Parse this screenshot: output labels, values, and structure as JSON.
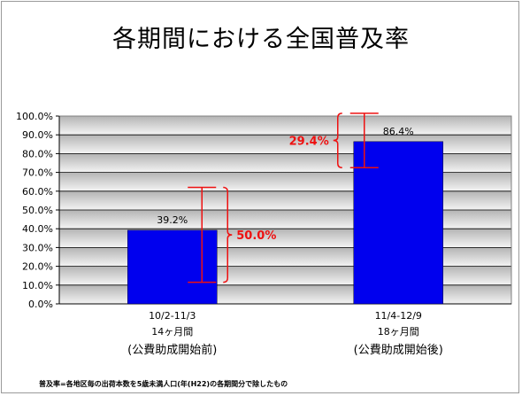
{
  "chart_data": {
    "type": "bar",
    "title": "各期間における全国普及率",
    "categories": [
      {
        "line1": "10/2-11/3",
        "line2": "14ヶ月間",
        "line3": "(公費助成開始前)"
      },
      {
        "line1": "11/4-12/9",
        "line2": "18ヶ月間",
        "line3": "(公費助成開始後)"
      }
    ],
    "values": [
      39.2,
      86.4
    ],
    "value_labels": [
      "39.2%",
      "86.4%"
    ],
    "ylim": [
      0,
      100
    ],
    "ytick_step": 10,
    "yticks": [
      "0.0%",
      "10.0%",
      "20.0%",
      "30.0%",
      "40.0%",
      "50.0%",
      "60.0%",
      "70.0%",
      "80.0%",
      "90.0%",
      "100.0%"
    ],
    "error_ranges": [
      {
        "low": 11.5,
        "high": 62,
        "label": "50.0%"
      },
      {
        "low": 72.5,
        "high": 101.5,
        "label": "29.4%"
      }
    ],
    "bar_color": "#0000ee",
    "range_color": "#ee1111",
    "grid": true,
    "footnote": "普及率=各地区毎の出荷本数を5歳未満人口(年(H22)の各期間分で除したもの"
  }
}
